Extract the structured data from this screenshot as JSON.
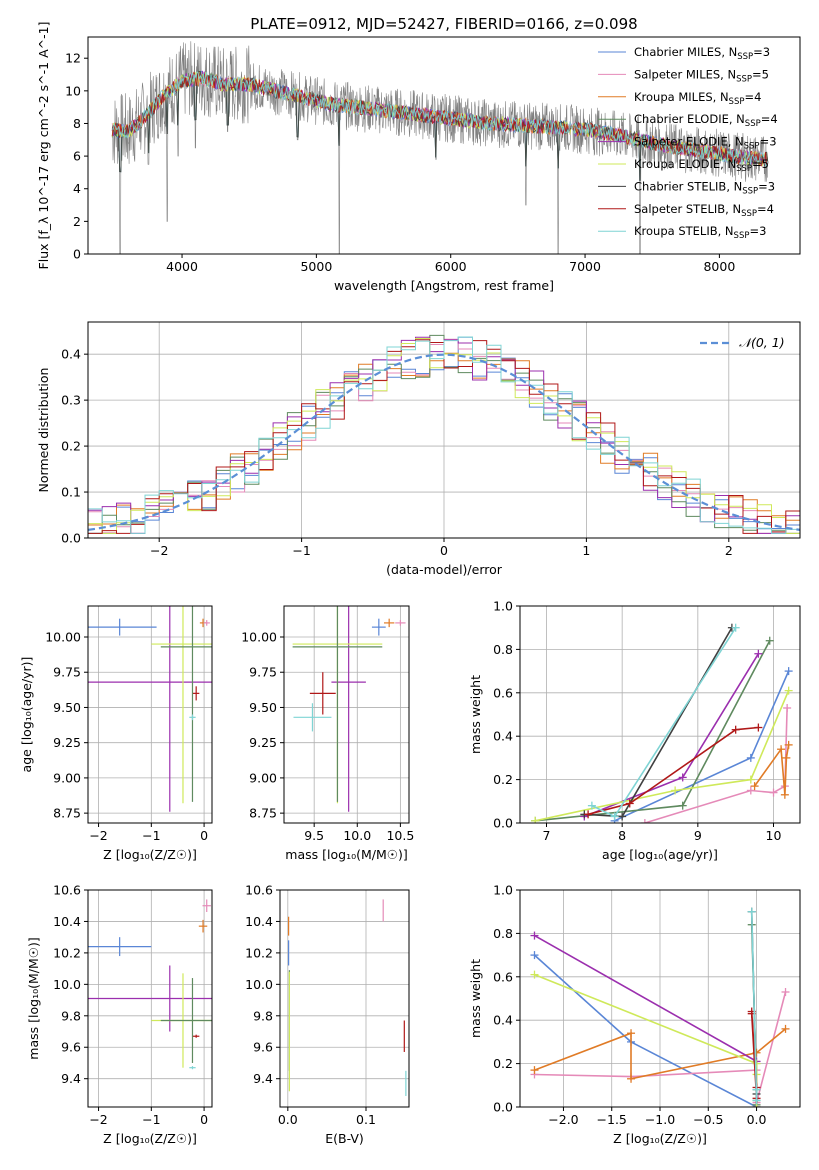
{
  "figure_title": "PLATE=0912, MJD=52427, FIBERID=0166, z=0.098",
  "colors": {
    "chabrier_miles": "#5a86d6",
    "salpeter_miles": "#e58ab8",
    "kroupa_miles": "#e07b26",
    "chabrier_elodie": "#5f8a5f",
    "salpeter_elodie": "#9b2fae",
    "kroupa_elodie": "#cfe95a",
    "chabrier_stelib": "#404040",
    "salpeter_stelib": "#b01818",
    "kroupa_stelib": "#7fd4d4",
    "normal_line": "#5b8fd6",
    "data_spectrum": "#808080"
  },
  "chart_data": [
    {
      "id": "spectrum",
      "type": "line",
      "xlabel": "wavelength [Angstrom, rest frame]",
      "ylabel": "Flux [f_λ 10^-17 erg cm^-2 s^-1 A^-1]",
      "xlim": [
        3300,
        8600
      ],
      "ylim": [
        0,
        13.3
      ],
      "xticks": [
        4000,
        5000,
        6000,
        7000,
        8000
      ],
      "yticks": [
        0,
        2,
        4,
        6,
        8,
        10,
        12
      ],
      "grid": false,
      "legend_position": "upper-right",
      "legend": [
        {
          "prefix": "Chabrier MILES, N",
          "sub": "SSP",
          "suffix": "=3",
          "color_key": "chabrier_miles"
        },
        {
          "prefix": "Salpeter MILES, N",
          "sub": "SSP",
          "suffix": "=5",
          "color_key": "salpeter_miles"
        },
        {
          "prefix": "Kroupa MILES, N",
          "sub": "SSP",
          "suffix": "=4",
          "color_key": "kroupa_miles"
        },
        {
          "prefix": "Chabrier ELODIE, N",
          "sub": "SSP",
          "suffix": "=4",
          "color_key": "chabrier_elodie"
        },
        {
          "prefix": "Salpeter ELODIE, N",
          "sub": "SSP",
          "suffix": "=3",
          "color_key": "salpeter_elodie"
        },
        {
          "prefix": "Kroupa ELODIE, N",
          "sub": "SSP",
          "suffix": "=5",
          "color_key": "kroupa_elodie"
        },
        {
          "prefix": "Chabrier STELIB, N",
          "sub": "SSP",
          "suffix": "=3",
          "color_key": "chabrier_stelib"
        },
        {
          "prefix": "Salpeter STELIB, N",
          "sub": "SSP",
          "suffix": "=4",
          "color_key": "salpeter_stelib"
        },
        {
          "prefix": "Kroupa STELIB, N",
          "sub": "SSP",
          "suffix": "=3",
          "color_key": "kroupa_stelib"
        }
      ],
      "continuum_nodes": {
        "x": [
          3480,
          3600,
          3700,
          3850,
          4000,
          4150,
          4300,
          4500,
          4700,
          4900,
          5100,
          5300,
          5500,
          5700,
          5900,
          6100,
          6300,
          6500,
          6700,
          6900,
          7100,
          7300,
          7500,
          7700,
          7900,
          8100,
          8350
        ],
        "y": [
          7.6,
          7.5,
          8.2,
          9.6,
          10.6,
          10.8,
          10.4,
          10.4,
          10.0,
          9.6,
          9.2,
          9.0,
          8.8,
          8.6,
          8.4,
          8.2,
          8.0,
          7.9,
          7.8,
          7.7,
          7.5,
          7.2,
          6.8,
          6.5,
          6.3,
          6.0,
          5.8
        ]
      },
      "absorption_dips": [
        {
          "x": 3540,
          "y": 0.0
        },
        {
          "x": 3750,
          "y": 5.5
        },
        {
          "x": 3890,
          "y": 2.0
        },
        {
          "x": 3970,
          "y": 6.0
        },
        {
          "x": 4100,
          "y": 6.5
        },
        {
          "x": 4340,
          "y": 7.5
        },
        {
          "x": 4860,
          "y": 7.0
        },
        {
          "x": 5170,
          "y": 0.0
        },
        {
          "x": 5890,
          "y": 5.8
        },
        {
          "x": 6560,
          "y": 3.0
        },
        {
          "x": 6800,
          "y": 0.0
        },
        {
          "x": 7410,
          "y": 0.0
        }
      ]
    },
    {
      "id": "residuals",
      "type": "step",
      "xlabel": "(data-model)/error",
      "ylabel": "Normed distribution",
      "xlim": [
        -2.5,
        2.5
      ],
      "ylim": [
        0,
        0.47
      ],
      "xticks": [
        -2,
        -1,
        0,
        1,
        2
      ],
      "yticks": [
        0.0,
        0.1,
        0.2,
        0.3,
        0.4
      ],
      "grid": true,
      "legend_position": "upper-right",
      "legend": [
        {
          "label": "𝒩(0, 1)",
          "color_key": "normal_line"
        }
      ],
      "bins": 50,
      "bin_width": 0.1
    },
    {
      "id": "age-vs-z",
      "type": "errorbar",
      "xlabel": "Z [log₁₀(Z/Z☉)]",
      "ylabel": "age [log₁₀(age/yr)]",
      "xlim": [
        -2.2,
        0.15
      ],
      "ylim": [
        8.68,
        10.22
      ],
      "xticks": [
        -2,
        -1,
        0
      ],
      "yticks": [
        8.75,
        9.0,
        9.25,
        9.5,
        9.75,
        10.0
      ],
      "grid": true,
      "points": [
        {
          "color_key": "chabrier_miles",
          "x": -1.6,
          "xerr": 0.7,
          "y": 10.07,
          "yerr": 0.06
        },
        {
          "color_key": "salpeter_elodie",
          "x": -0.65,
          "xerr": 1.6,
          "y": 9.68,
          "yerr": 0.92
        },
        {
          "color_key": "kroupa_elodie",
          "x": -0.4,
          "xerr": 0.6,
          "y": 9.95,
          "yerr": 1.13
        },
        {
          "color_key": "chabrier_elodie",
          "x": -0.22,
          "xerr": 0.6,
          "y": 9.93,
          "yerr": 1.1
        },
        {
          "color_key": "kroupa_stelib",
          "x": -0.22,
          "xerr": 0.06,
          "y": 9.43,
          "yerr": 0.02
        },
        {
          "color_key": "salpeter_stelib",
          "x": -0.15,
          "xerr": 0.06,
          "y": 9.6,
          "yerr": 0.05
        },
        {
          "color_key": "kroupa_miles",
          "x": -0.02,
          "xerr": 0.06,
          "y": 10.1,
          "yerr": 0.03
        },
        {
          "color_key": "salpeter_miles",
          "x": 0.05,
          "xerr": 0.06,
          "y": 10.1,
          "yerr": 0.02
        }
      ]
    },
    {
      "id": "age-vs-mass",
      "type": "errorbar",
      "xlabel": "mass [log₁₀(M/M☉)]",
      "ylabel": "",
      "xlim": [
        9.15,
        10.6
      ],
      "ylim": [
        8.68,
        10.22
      ],
      "xticks": [
        9.5,
        10.0,
        10.5
      ],
      "yticks": [
        8.75,
        9.0,
        9.25,
        9.5,
        9.75,
        10.0
      ],
      "grid": true,
      "points": [
        {
          "color_key": "chabrier_miles",
          "x": 10.25,
          "xerr": 0.08,
          "y": 10.07,
          "yerr": 0.06
        },
        {
          "color_key": "salpeter_elodie",
          "x": 9.9,
          "xerr": 0.2,
          "y": 9.68,
          "yerr": 0.92
        },
        {
          "color_key": "kroupa_elodie",
          "x": 9.77,
          "xerr": 0.52,
          "y": 9.95,
          "yerr": 1.13
        },
        {
          "color_key": "chabrier_elodie",
          "x": 9.77,
          "xerr": 0.52,
          "y": 9.93,
          "yerr": 1.1
        },
        {
          "color_key": "kroupa_stelib",
          "x": 9.48,
          "xerr": 0.22,
          "y": 9.43,
          "yerr": 0.1
        },
        {
          "color_key": "salpeter_stelib",
          "x": 9.6,
          "xerr": 0.15,
          "y": 9.6,
          "yerr": 0.15
        },
        {
          "color_key": "kroupa_miles",
          "x": 10.37,
          "xerr": 0.06,
          "y": 10.1,
          "yerr": 0.03
        },
        {
          "color_key": "salpeter_miles",
          "x": 10.5,
          "xerr": 0.06,
          "y": 10.1,
          "yerr": 0.02
        }
      ]
    },
    {
      "id": "weight-vs-age",
      "type": "line",
      "xlabel": "age [log₁₀(age/yr)]",
      "ylabel": "mass weight",
      "xlim": [
        6.65,
        10.35
      ],
      "ylim": [
        0,
        1.0
      ],
      "xticks": [
        7,
        8,
        9,
        10
      ],
      "yticks": [
        0.0,
        0.2,
        0.4,
        0.6,
        0.8,
        1.0
      ],
      "grid": true,
      "series": [
        {
          "color_key": "chabrier_miles",
          "x": [
            7.9,
            9.7,
            10.2
          ],
          "y": [
            0.01,
            0.3,
            0.7
          ]
        },
        {
          "color_key": "salpeter_miles",
          "x": [
            8.3,
            9.7,
            10.0,
            10.15,
            10.18
          ],
          "y": [
            0.0,
            0.15,
            0.14,
            0.17,
            0.53
          ]
        },
        {
          "color_key": "kroupa_miles",
          "x": [
            9.75,
            10.1,
            10.15,
            10.17,
            10.2
          ],
          "y": [
            0.17,
            0.34,
            0.13,
            0.3,
            0.36
          ]
        },
        {
          "color_key": "chabrier_elodie",
          "x": [
            6.85,
            8.8,
            9.95
          ],
          "y": [
            0.01,
            0.08,
            0.84
          ]
        },
        {
          "color_key": "salpeter_elodie",
          "x": [
            7.5,
            8.8,
            9.8
          ],
          "y": [
            0.03,
            0.21,
            0.78
          ]
        },
        {
          "color_key": "kroupa_elodie",
          "x": [
            6.85,
            8.7,
            9.7,
            10.2
          ],
          "y": [
            0.01,
            0.15,
            0.2,
            0.61
          ]
        },
        {
          "color_key": "chabrier_stelib",
          "x": [
            7.5,
            8.0,
            9.45
          ],
          "y": [
            0.04,
            0.03,
            0.9
          ]
        },
        {
          "color_key": "salpeter_stelib",
          "x": [
            7.55,
            8.1,
            9.5,
            9.8
          ],
          "y": [
            0.04,
            0.09,
            0.43,
            0.44
          ]
        },
        {
          "color_key": "kroupa_stelib",
          "x": [
            7.6,
            7.9,
            9.5
          ],
          "y": [
            0.08,
            0.03,
            0.9
          ]
        }
      ]
    },
    {
      "id": "mass-vs-z",
      "type": "errorbar",
      "xlabel": "Z [log₁₀(Z/Z☉)]",
      "ylabel": "mass [log₁₀(M/M☉)]",
      "xlim": [
        -2.2,
        0.15
      ],
      "ylim": [
        9.22,
        10.6
      ],
      "xticks": [
        -2,
        -1,
        0
      ],
      "yticks": [
        9.4,
        9.6,
        9.8,
        10.0,
        10.2,
        10.4,
        10.6
      ],
      "grid": true,
      "points": [
        {
          "color_key": "chabrier_miles",
          "x": -1.6,
          "xerr": 0.6,
          "y": 10.24,
          "yerr": 0.06
        },
        {
          "color_key": "salpeter_elodie",
          "x": -0.65,
          "xerr": 1.6,
          "y": 9.91,
          "yerr": 0.21
        },
        {
          "color_key": "kroupa_elodie",
          "x": -0.4,
          "xerr": 0.6,
          "y": 9.77,
          "yerr": 0.3
        },
        {
          "color_key": "chabrier_elodie",
          "x": -0.22,
          "xerr": 0.6,
          "y": 9.77,
          "yerr": 0.27
        },
        {
          "color_key": "kroupa_stelib",
          "x": -0.22,
          "xerr": 0.06,
          "y": 9.47,
          "yerr": 0.01
        },
        {
          "color_key": "salpeter_stelib",
          "x": -0.15,
          "xerr": 0.06,
          "y": 9.67,
          "yerr": 0.01
        },
        {
          "color_key": "kroupa_miles",
          "x": -0.02,
          "xerr": 0.08,
          "y": 10.37,
          "yerr": 0.04
        },
        {
          "color_key": "salpeter_miles",
          "x": 0.05,
          "xerr": 0.08,
          "y": 10.5,
          "yerr": 0.04
        }
      ]
    },
    {
      "id": "mass-vs-ebv",
      "type": "errorbar",
      "xlabel": "E(B-V)",
      "ylabel": "",
      "xlim": [
        -0.01,
        0.155
      ],
      "ylim": [
        9.22,
        10.6
      ],
      "xticks": [
        0.0,
        0.1
      ],
      "yticks": [
        9.4,
        9.6,
        9.8,
        10.0,
        10.2,
        10.4,
        10.6
      ],
      "grid": true,
      "points": [
        {
          "color_key": "kroupa_miles",
          "x": 0.001,
          "xerr": 0.0,
          "y": 10.37,
          "yerr": 0.06
        },
        {
          "color_key": "chabrier_miles",
          "x": 0.001,
          "xerr": 0.0,
          "y": 10.2,
          "yerr": 0.08
        },
        {
          "color_key": "chabrier_elodie",
          "x": 0.002,
          "xerr": 0.0,
          "y": 9.77,
          "yerr": 0.32
        },
        {
          "color_key": "kroupa_elodie",
          "x": 0.002,
          "xerr": 0.0,
          "y": 9.7,
          "yerr": 0.38
        },
        {
          "color_key": "salpeter_miles",
          "x": 0.122,
          "xerr": 0.0,
          "y": 10.47,
          "yerr": 0.07
        },
        {
          "color_key": "salpeter_stelib",
          "x": 0.149,
          "xerr": 0.0,
          "y": 9.67,
          "yerr": 0.1
        },
        {
          "color_key": "kroupa_stelib",
          "x": 0.151,
          "xerr": 0.0,
          "y": 9.37,
          "yerr": 0.08
        }
      ]
    },
    {
      "id": "weight-vs-z",
      "type": "line",
      "xlabel": "Z [log₁₀(Z/Z☉)]",
      "ylabel": "mass weight",
      "xlim": [
        -2.45,
        0.45
      ],
      "ylim": [
        0,
        1.0
      ],
      "xticks": [
        -2.0,
        -1.5,
        -1.0,
        -0.5,
        0.0
      ],
      "yticks": [
        0.0,
        0.2,
        0.4,
        0.6,
        0.8,
        1.0
      ],
      "grid": true,
      "series": [
        {
          "color_key": "chabrier_miles",
          "x": [
            -2.3,
            -1.3,
            0.0
          ],
          "y": [
            0.7,
            0.3,
            0.0
          ]
        },
        {
          "color_key": "salpeter_miles",
          "x": [
            -2.3,
            -1.3,
            0.0,
            0.0,
            0.3
          ],
          "y": [
            0.15,
            0.14,
            0.17,
            0.02,
            0.53
          ]
        },
        {
          "color_key": "kroupa_miles",
          "x": [
            -2.3,
            -1.3,
            -1.3,
            0.0,
            0.3
          ],
          "y": [
            0.17,
            0.34,
            0.13,
            0.25,
            0.36
          ]
        },
        {
          "color_key": "chabrier_elodie",
          "x": [
            -0.05,
            0.0,
            0.0
          ],
          "y": [
            0.84,
            0.08,
            0.01
          ]
        },
        {
          "color_key": "salpeter_elodie",
          "x": [
            -2.3,
            0.0,
            0.0
          ],
          "y": [
            0.79,
            0.21,
            0.0
          ]
        },
        {
          "color_key": "kroupa_elodie",
          "x": [
            -2.3,
            0.0,
            0.0,
            0.0
          ],
          "y": [
            0.61,
            0.2,
            0.15,
            0.0
          ]
        },
        {
          "color_key": "chabrier_stelib",
          "x": [
            -0.05,
            0.0,
            0.0
          ],
          "y": [
            0.9,
            0.03,
            0.06
          ]
        },
        {
          "color_key": "salpeter_stelib",
          "x": [
            -0.05,
            0.0,
            0.0,
            -0.05
          ],
          "y": [
            0.44,
            0.09,
            0.04,
            0.43
          ]
        },
        {
          "color_key": "kroupa_stelib",
          "x": [
            -0.05,
            0.0,
            0.0
          ],
          "y": [
            0.9,
            0.03,
            0.08
          ]
        }
      ]
    }
  ]
}
